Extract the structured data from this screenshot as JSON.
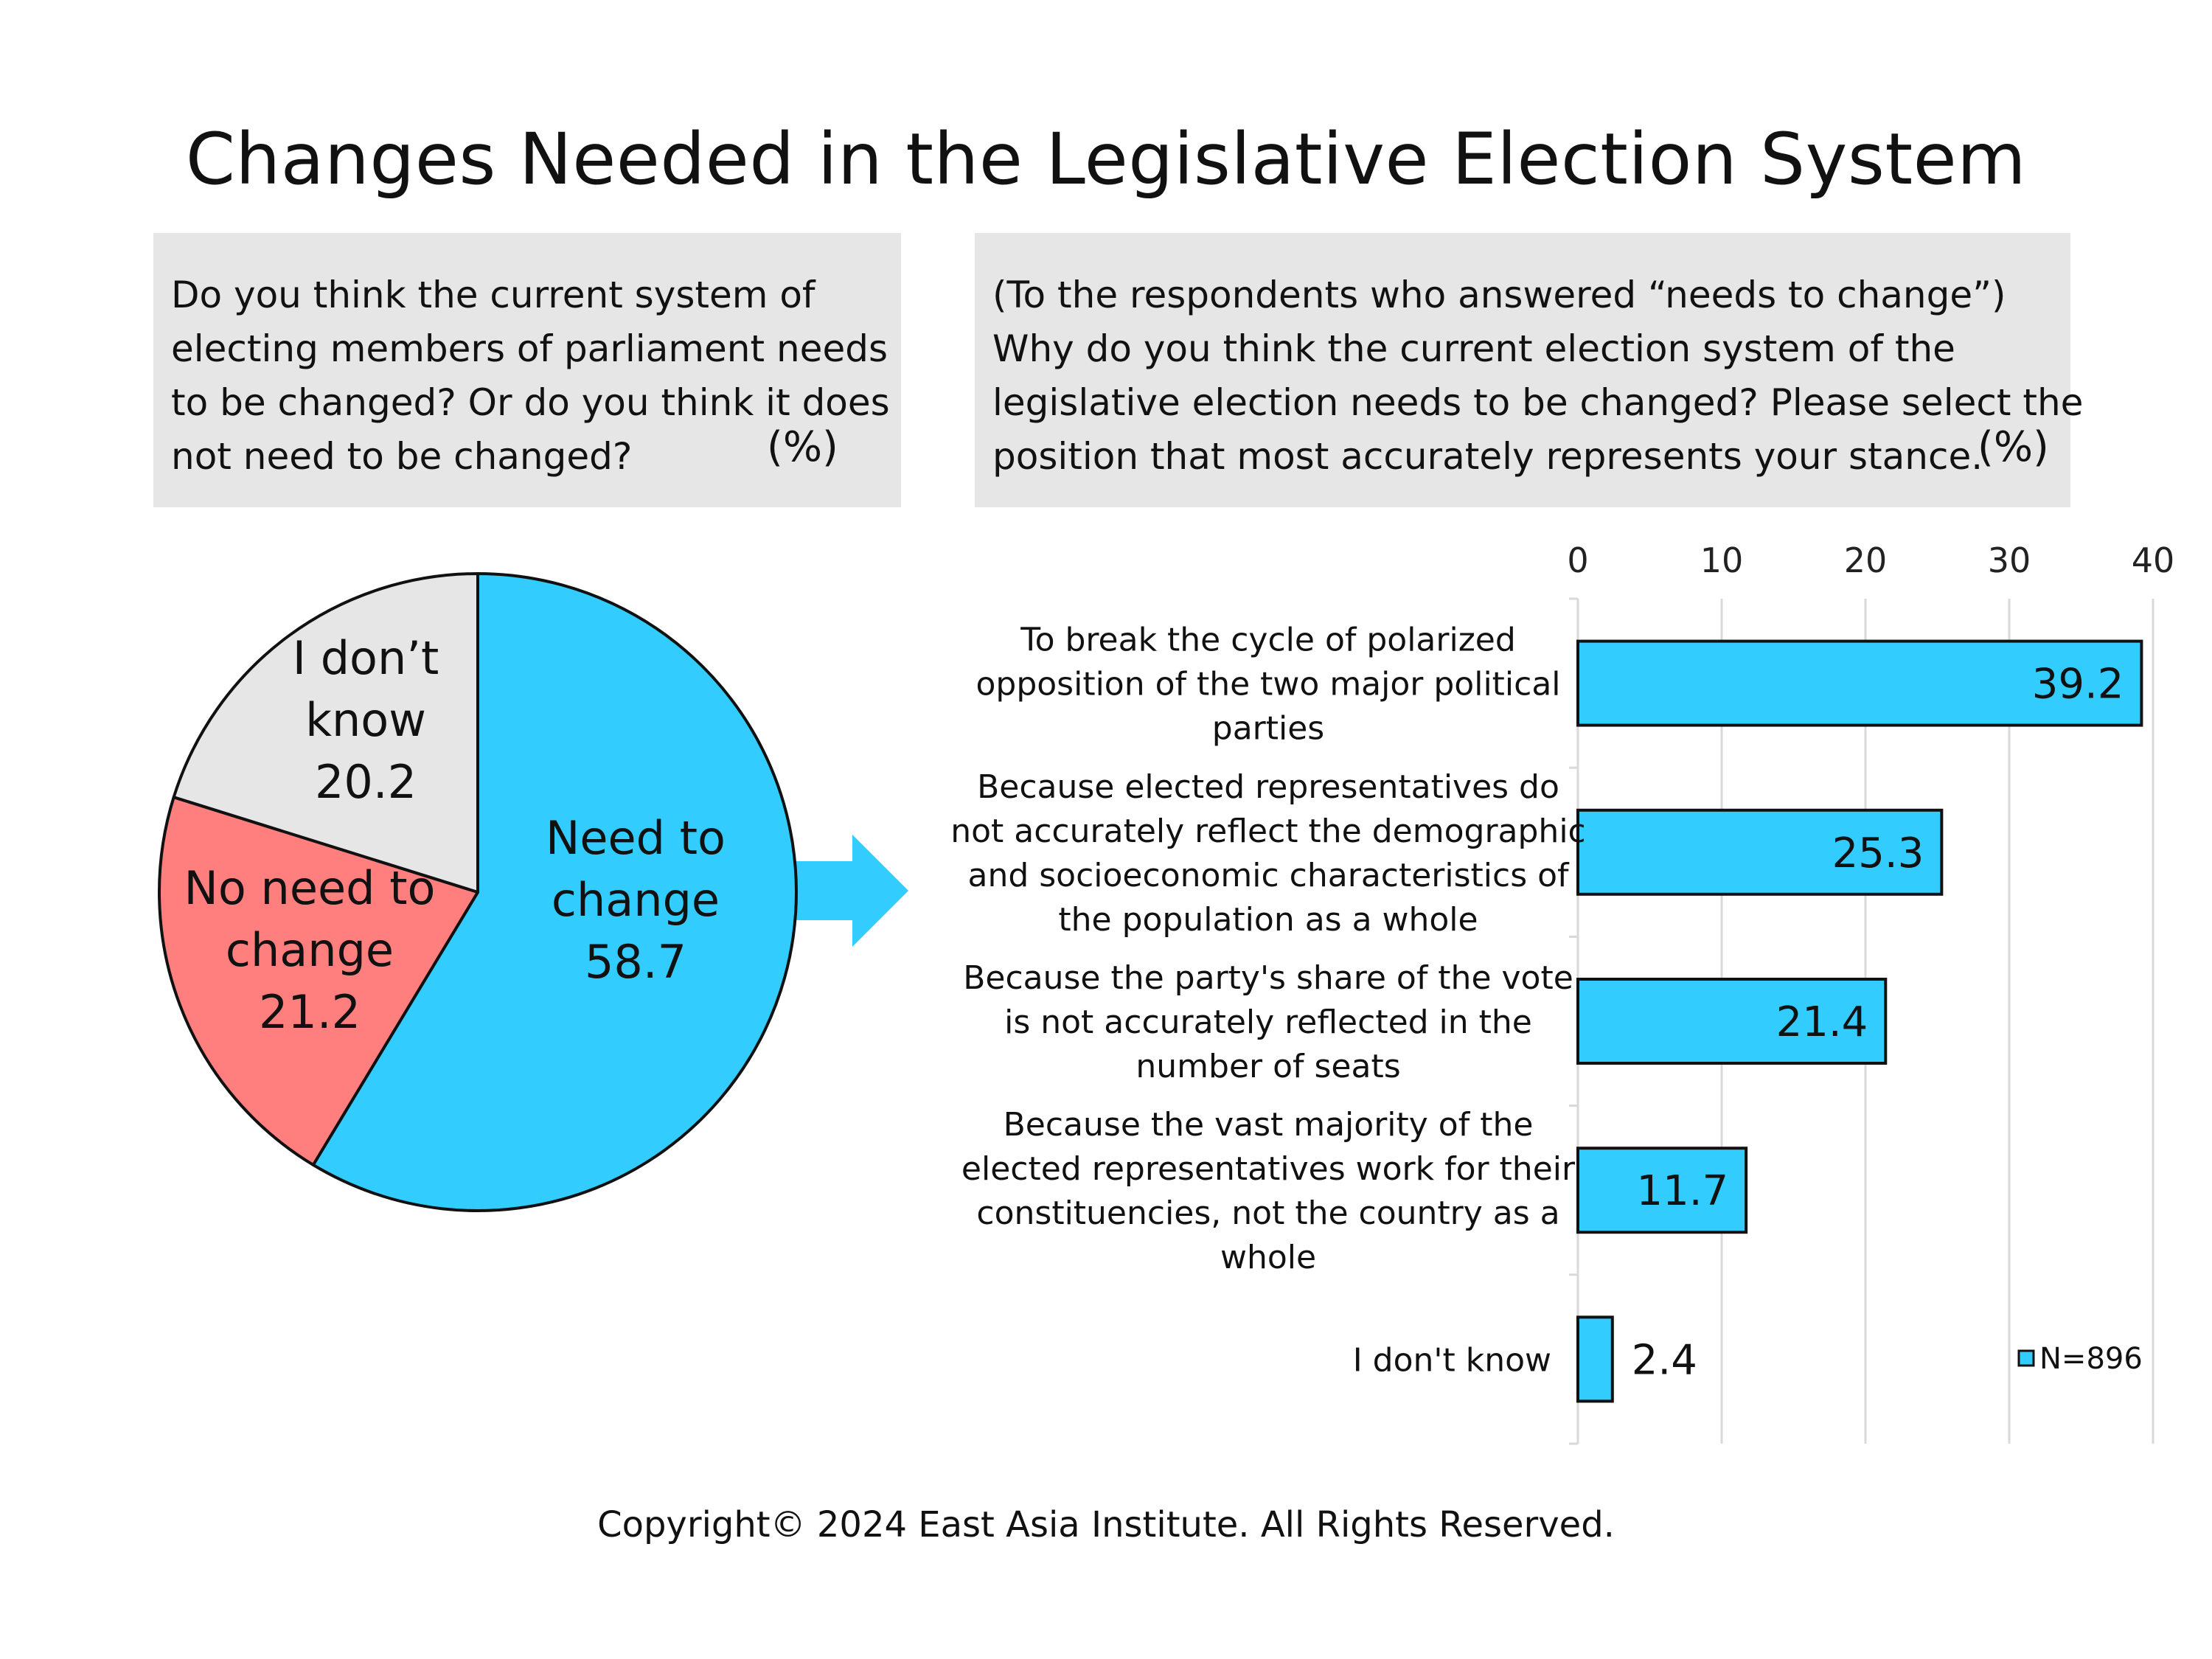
{
  "title": "Changes Needed in the Legislative Election System",
  "left_question": {
    "lines": [
      "Do you think the current system of",
      "electing members of parliament needs",
      "to be changed? Or do you think it does",
      "not need to be changed?"
    ],
    "unit": "(%)"
  },
  "right_question": {
    "lines": [
      "(To the respondents who answered “needs to change”)",
      "Why do you think the current election system of the",
      "legislative election needs to be changed? Please select the",
      "position that most accurately represents your stance."
    ],
    "unit": "(%)"
  },
  "copyright": "Copyright© 2024 East Asia Institute. All Rights Reserved.",
  "colors": {
    "accent": "#33ccff",
    "red": "#ff7f7f",
    "grey": "#e6e6e6",
    "box_bg": "#e6e6e6",
    "outline": "#111111",
    "gridline": "#d9d9d9"
  },
  "chart_data": [
    {
      "type": "pie",
      "slices": [
        {
          "label_lines": [
            "Need to",
            "change"
          ],
          "value": 58.7,
          "display": "58.7",
          "color": "#33ccff"
        },
        {
          "label_lines": [
            "No need to",
            "change"
          ],
          "value": 21.2,
          "display": "21.2",
          "color": "#ff7f7f"
        },
        {
          "label_lines": [
            "I don’t",
            "know"
          ],
          "value": 20.2,
          "display": "20.2",
          "color": "#e6e6e6"
        }
      ],
      "start": "12 o'clock",
      "direction": "clockwise"
    },
    {
      "type": "bar",
      "orientation": "horizontal",
      "categories": [
        [
          "To break the cycle of polarized",
          "opposition of the two major political",
          "parties"
        ],
        [
          "Because elected representatives do",
          "not accurately reflect the demographic",
          "and socioeconomic characteristics of",
          "the population as a whole"
        ],
        [
          "Because the party's share of the vote",
          "is not accurately reflected in the",
          "number of seats"
        ],
        [
          "Because the vast majority of the",
          "elected representatives work for their",
          "constituencies, not the country as a",
          "whole"
        ],
        [
          "I don't know"
        ]
      ],
      "values": [
        39.2,
        25.3,
        21.4,
        11.7,
        2.4
      ],
      "labels": [
        "39.2",
        "25.3",
        "21.4",
        "11.7",
        "2.4"
      ],
      "xlim": [
        0,
        40
      ],
      "xticks": [
        0,
        10,
        20,
        30,
        40
      ],
      "xtick_labels": [
        "0",
        "10",
        "20",
        "30",
        "40"
      ],
      "axis_position": "top",
      "grid": true,
      "legend": {
        "label": "N=896",
        "placement": "bottom-right"
      },
      "color": "#33ccff"
    }
  ]
}
